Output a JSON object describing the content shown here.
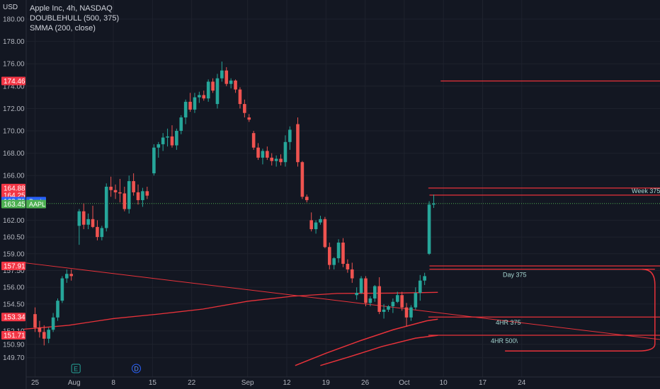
{
  "header": {
    "currency": "USD",
    "title": "Apple Inc, 4h, NASDAQ",
    "indicators": [
      "DOUBLEHULL (500, 375)",
      "SMMA (200, close)"
    ]
  },
  "colors": {
    "background": "#131722",
    "up": "#26a69a",
    "down": "#ef5350",
    "line": "#e8323a",
    "grid": "#1e222d",
    "text": "#b2b5be",
    "label_text": "#a6d6d1",
    "tag_blue": "#2962ff",
    "tag_green": "#4caf50",
    "tag_red": "#f23645"
  },
  "chart_data": {
    "type": "candlestick",
    "title": "Apple Inc, 4h, NASDAQ",
    "ylim": [
      149.2,
      180.8
    ],
    "y_ticks": [
      {
        "v": 180.0,
        "l": "180.00"
      },
      {
        "v": 178.0,
        "l": "178.00"
      },
      {
        "v": 176.0,
        "l": "176.00"
      },
      {
        "v": 174.0,
        "l": "174.00"
      },
      {
        "v": 172.0,
        "l": "172.00"
      },
      {
        "v": 170.0,
        "l": "170.00"
      },
      {
        "v": 168.0,
        "l": "168.00"
      },
      {
        "v": 166.0,
        "l": "166.00"
      },
      {
        "v": 162.0,
        "l": "162.00"
      },
      {
        "v": 160.5,
        "l": "160.50"
      },
      {
        "v": 159.0,
        "l": "159.00"
      },
      {
        "v": 157.5,
        "l": "157.50"
      },
      {
        "v": 156.0,
        "l": "156.00"
      },
      {
        "v": 154.5,
        "l": "154.50"
      },
      {
        "v": 152.1,
        "l": "152.10"
      },
      {
        "v": 150.9,
        "l": "150.90"
      },
      {
        "v": 149.7,
        "l": "149.70"
      }
    ],
    "x_ticks": [
      {
        "d": 0,
        "l": "25"
      },
      {
        "d": 7,
        "l": "Aug"
      },
      {
        "d": 14,
        "l": "8"
      },
      {
        "d": 21,
        "l": "15"
      },
      {
        "d": 28,
        "l": "22"
      },
      {
        "d": 38,
        "l": "Sep"
      },
      {
        "d": 45,
        "l": "12"
      },
      {
        "d": 52,
        "l": "19"
      },
      {
        "d": 59,
        "l": "26"
      },
      {
        "d": 66,
        "l": "Oct"
      },
      {
        "d": 73,
        "l": "10"
      },
      {
        "d": 80,
        "l": "17"
      },
      {
        "d": 87,
        "l": "24"
      }
    ],
    "candles": [
      [
        153.6,
        154.2,
        152.0,
        152.4
      ],
      [
        152.4,
        153.0,
        151.5,
        152.0
      ],
      [
        152.0,
        152.6,
        150.8,
        151.4
      ],
      [
        151.4,
        152.4,
        151.0,
        152.2
      ],
      [
        152.2,
        153.7,
        152.0,
        153.3
      ],
      [
        153.3,
        155.0,
        153.0,
        154.8
      ],
      [
        154.8,
        157.0,
        154.6,
        156.8
      ],
      [
        156.8,
        157.6,
        156.4,
        157.2
      ],
      [
        157.2,
        157.6,
        156.6,
        157.0
      ],
      [
        161.5,
        163.0,
        159.8,
        162.8
      ],
      [
        162.8,
        163.5,
        161.2,
        161.6
      ],
      [
        161.6,
        162.6,
        161.2,
        162.1
      ],
      [
        162.1,
        163.3,
        161.3,
        161.4
      ],
      [
        161.4,
        162.0,
        160.2,
        160.5
      ],
      [
        160.5,
        161.5,
        160.2,
        161.3
      ],
      [
        161.3,
        165.3,
        161.0,
        165.0
      ],
      [
        165.0,
        165.9,
        164.1,
        164.7
      ],
      [
        164.7,
        165.2,
        163.9,
        164.5
      ],
      [
        164.5,
        165.7,
        163.6,
        164.4
      ],
      [
        164.4,
        165.0,
        162.8,
        163.0
      ],
      [
        163.0,
        166.0,
        162.6,
        165.5
      ],
      [
        165.5,
        166.2,
        164.2,
        164.5
      ],
      [
        164.5,
        165.2,
        163.4,
        163.8
      ],
      [
        163.8,
        164.9,
        163.2,
        164.6
      ],
      [
        164.6,
        165.0,
        163.9,
        164.2
      ],
      [
        166.2,
        168.8,
        166.0,
        168.5
      ],
      [
        168.5,
        169.0,
        167.6,
        168.8
      ],
      [
        168.8,
        169.8,
        168.2,
        169.4
      ],
      [
        169.4,
        170.2,
        168.6,
        169.5
      ],
      [
        169.5,
        170.5,
        168.5,
        168.7
      ],
      [
        168.7,
        170.2,
        168.3,
        170.0
      ],
      [
        170.0,
        171.4,
        169.7,
        171.2
      ],
      [
        171.2,
        172.8,
        170.6,
        172.6
      ],
      [
        172.6,
        173.4,
        171.7,
        171.9
      ],
      [
        171.9,
        173.4,
        171.6,
        173.0
      ],
      [
        173.0,
        173.5,
        172.5,
        173.2
      ],
      [
        173.2,
        173.6,
        172.7,
        172.9
      ],
      [
        172.9,
        174.6,
        172.6,
        174.4
      ],
      [
        174.4,
        174.7,
        173.4,
        173.6
      ],
      [
        172.4,
        175.1,
        172.0,
        174.7
      ],
      [
        174.7,
        176.2,
        174.4,
        175.4
      ],
      [
        175.4,
        175.7,
        174.0,
        174.2
      ],
      [
        174.2,
        174.7,
        173.8,
        174.5
      ],
      [
        174.5,
        174.6,
        173.4,
        173.7
      ],
      [
        173.7,
        173.9,
        172.0,
        172.4
      ],
      [
        172.4,
        172.8,
        171.2,
        171.6
      ],
      [
        171.2,
        171.5,
        170.8,
        171.0
      ],
      [
        169.8,
        170.0,
        168.3,
        168.5
      ],
      [
        168.5,
        168.9,
        167.4,
        167.6
      ],
      [
        167.6,
        168.4,
        167.0,
        168.2
      ],
      [
        168.2,
        168.6,
        167.4,
        167.6
      ],
      [
        167.6,
        168.0,
        166.9,
        167.3
      ],
      [
        167.3,
        167.8,
        166.8,
        167.5
      ],
      [
        167.5,
        167.9,
        166.9,
        167.2
      ],
      [
        167.2,
        169.6,
        166.8,
        169.0
      ],
      [
        169.0,
        170.4,
        168.3,
        170.1
      ],
      [
        170.6,
        171.2,
        166.8,
        167.2
      ],
      [
        167.2,
        167.3,
        163.9,
        164.1
      ],
      [
        164.1,
        164.3,
        163.6,
        163.8
      ],
      [
        162.0,
        162.7,
        161.0,
        161.2
      ],
      [
        161.2,
        162.0,
        160.8,
        161.8
      ],
      [
        161.8,
        162.4,
        161.6,
        162.1
      ],
      [
        162.1,
        162.3,
        159.5,
        159.6
      ],
      [
        159.6,
        160.0,
        157.6,
        158.0
      ],
      [
        158.0,
        158.7,
        157.6,
        158.6
      ],
      [
        158.6,
        160.3,
        158.2,
        160.0
      ],
      [
        160.0,
        160.4,
        157.8,
        158.1
      ],
      [
        158.1,
        158.5,
        157.3,
        157.6
      ],
      [
        157.6,
        158.2,
        156.4,
        156.8
      ],
      [
        155.3,
        156.0,
        154.9,
        155.5
      ],
      [
        155.5,
        157.0,
        155.4,
        156.8
      ],
      [
        156.8,
        157.0,
        154.3,
        154.6
      ],
      [
        154.6,
        155.2,
        154.3,
        155.0
      ],
      [
        155.0,
        156.2,
        154.7,
        156.1
      ],
      [
        156.1,
        156.9,
        153.6,
        153.8
      ],
      [
        153.8,
        154.5,
        153.2,
        154.0
      ],
      [
        154.0,
        154.4,
        153.8,
        154.3
      ],
      [
        154.3,
        155.0,
        153.7,
        154.7
      ],
      [
        154.7,
        155.6,
        154.6,
        155.3
      ],
      [
        155.3,
        155.6,
        153.9,
        154.2
      ],
      [
        154.2,
        154.6,
        152.5,
        153.3
      ],
      [
        153.3,
        154.4,
        153.0,
        154.2
      ],
      [
        154.2,
        156.0,
        154.0,
        155.5
      ],
      [
        155.5,
        157.1,
        154.8,
        156.6
      ],
      [
        156.6,
        157.3,
        156.2,
        157.0
      ],
      [
        159.0,
        163.7,
        158.9,
        163.4
      ],
      [
        163.4,
        164.3,
        163.1,
        163.5
      ]
    ],
    "price_tags": [
      {
        "l": "174.46",
        "v": 174.46,
        "c": "#f23645"
      },
      {
        "l": "164.88",
        "v": 164.88,
        "c": "#f23645"
      },
      {
        "l": "164.25",
        "v": 164.25,
        "c": "#f23645"
      },
      {
        "l": "163.71",
        "v": 163.71,
        "c": "#2962ff",
        "tag": "Posi"
      },
      {
        "l": "163.45",
        "v": 163.45,
        "c": "#4caf50",
        "tag": "AAPL"
      },
      {
        "l": "157.91",
        "v": 157.91,
        "c": "#f23645"
      },
      {
        "l": "153.34",
        "v": 153.34,
        "c": "#f23645"
      },
      {
        "l": "151.71",
        "v": 151.71,
        "c": "#f23645"
      }
    ],
    "levels": [
      {
        "y": 174.46,
        "d0": 72.5,
        "d1": null,
        "label": ""
      },
      {
        "y": 164.88,
        "d0": 70.3,
        "d1": null,
        "label": ""
      },
      {
        "y": 164.25,
        "d0": 70.5,
        "d1": null,
        "label": "Week 375"
      },
      {
        "y": 157.91,
        "d0": 70.5,
        "d1": null,
        "label": ""
      },
      {
        "y": 157.62,
        "d0": 70.5,
        "d1": 110.8,
        "label": "Day 375"
      },
      {
        "y": 153.34,
        "d0": 70.3,
        "d1": null,
        "label": "4HR 375"
      },
      {
        "y": 151.71,
        "d0": 70.3,
        "d1": null,
        "label": "4HR 500\\"
      }
    ],
    "bracket": {
      "top_y": 157.62,
      "bottom_y": 150.3,
      "d_right": 110.8,
      "d_bottom_start": 84.0
    },
    "trendline": {
      "d0": -2.0,
      "y0": 158.2,
      "d1": 132.0,
      "y1": 150.1
    },
    "smma": [
      [
        -2,
        152.25
      ],
      [
        6,
        152.6
      ],
      [
        14,
        153.2
      ],
      [
        22,
        153.6
      ],
      [
        30,
        154.05
      ],
      [
        38,
        154.75
      ],
      [
        46,
        155.2
      ],
      [
        54,
        155.45
      ],
      [
        64,
        155.48
      ],
      [
        72,
        155.55
      ]
    ],
    "hull_curves": [
      [
        [
          46.5,
          149.0
        ],
        [
          52,
          150.1
        ],
        [
          58,
          151.2
        ],
        [
          64,
          152.2
        ],
        [
          70,
          153.0
        ],
        [
          72,
          153.15
        ]
      ],
      [
        [
          51,
          149.0
        ],
        [
          56,
          149.75
        ],
        [
          62,
          150.7
        ],
        [
          68,
          151.45
        ],
        [
          72,
          151.7
        ]
      ]
    ],
    "markers": [
      {
        "d": 7.3,
        "y": 150.0,
        "l": "E"
      },
      {
        "d": 18.1,
        "y": 150.0,
        "l": "D"
      }
    ]
  }
}
